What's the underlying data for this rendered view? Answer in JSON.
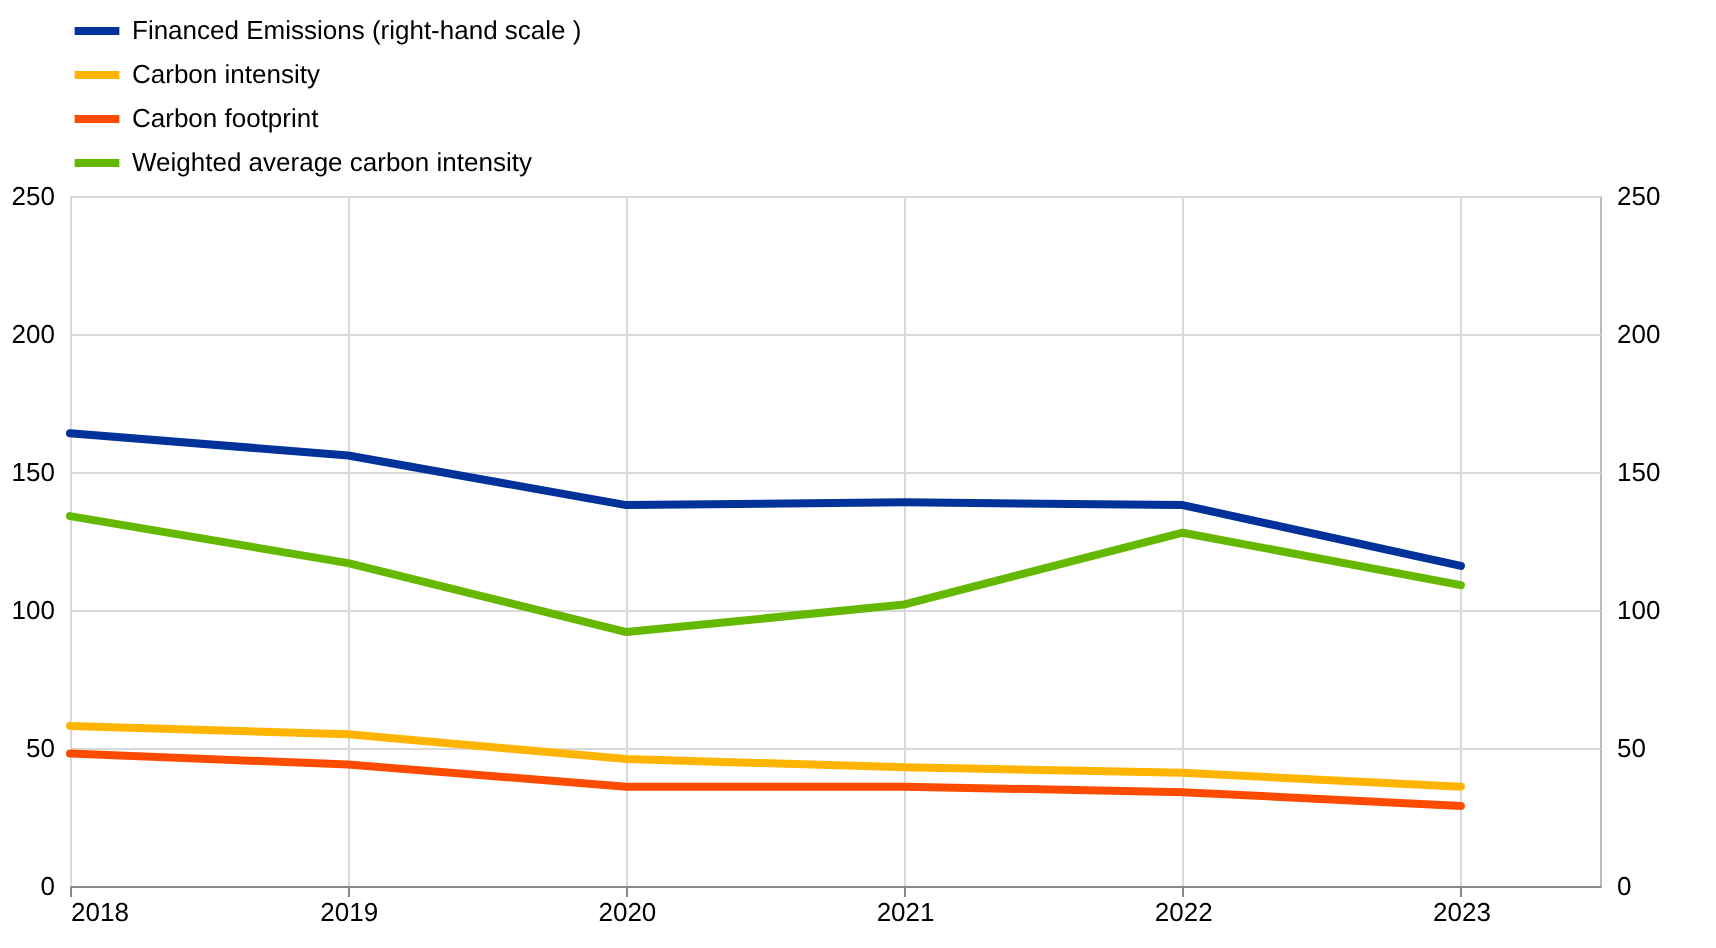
{
  "chart_data": {
    "type": "line",
    "x": [
      2018,
      2019,
      2020,
      2021,
      2022,
      2023
    ],
    "xlim": [
      2018,
      2023.5
    ],
    "xticks": [
      2018,
      2019,
      2020,
      2021,
      2022,
      2023
    ],
    "ylim": [
      0,
      250
    ],
    "yticks": [
      0,
      50,
      100,
      150,
      200,
      250
    ],
    "y2lim": [
      0,
      250
    ],
    "y2ticks": [
      0,
      50,
      100,
      150,
      200,
      250
    ],
    "grid": true,
    "legend": "top left",
    "marker": "none",
    "line_style": "solid",
    "series": [
      {
        "name": "Financed Emissions (right-hand scale )",
        "color": "#003299",
        "axis": "y2",
        "values": [
          164,
          156,
          138,
          139,
          138,
          116
        ]
      },
      {
        "name": "Carbon intensity",
        "color": "#ffb400",
        "values": [
          58,
          55,
          46,
          43,
          41,
          36
        ]
      },
      {
        "name": "Carbon footprint",
        "color": "#ff4b00",
        "values": [
          48,
          44,
          36,
          36,
          34,
          29
        ]
      },
      {
        "name": "Weighted average carbon intensity",
        "color": "#65b800",
        "values": [
          134,
          117,
          92,
          102,
          128,
          109
        ]
      }
    ]
  }
}
